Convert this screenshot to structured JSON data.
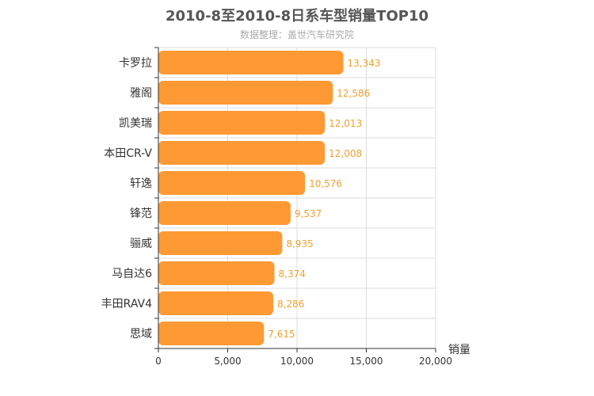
{
  "chart_data": {
    "type": "bar",
    "orientation": "horizontal",
    "title": "2010-8至2010-8日系车型销量TOP10",
    "subtitle": "数据整理：盖世汽车研究院",
    "categories": [
      "卡罗拉",
      "雅阁",
      "凯美瑞",
      "本田CR-V",
      "轩逸",
      "锋范",
      "骊威",
      "马自达6",
      "丰田RAV4",
      "思域"
    ],
    "values": [
      13343,
      12586,
      12013,
      12008,
      10576,
      9537,
      8935,
      8374,
      8286,
      7615
    ],
    "value_labels": [
      "13,343",
      "12,586",
      "12,013",
      "12,008",
      "10,576",
      "9,537",
      "8,935",
      "8,374",
      "8,286",
      "7,615"
    ],
    "xlabel": "销量",
    "ylabel": "",
    "xlim": [
      0,
      20000
    ],
    "xticks": [
      0,
      5000,
      10000,
      15000,
      20000
    ],
    "xtick_labels": [
      "0",
      "5,000",
      "10,000",
      "15,000",
      "20,000"
    ],
    "grid": true,
    "colors": {
      "bar": "#ff9933",
      "value_label": "#f0a030",
      "grid": "#dddddd",
      "axis": "#333333",
      "title": "#555555",
      "subtitle": "#aaaaaa"
    }
  }
}
